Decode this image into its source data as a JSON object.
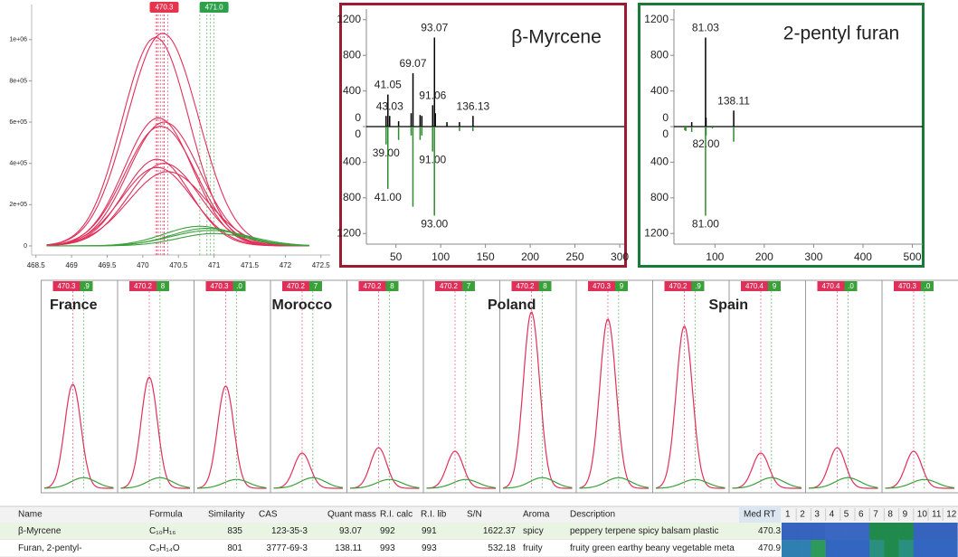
{
  "chart_data": [
    {
      "type": "peaks",
      "xlim": [
        468.44,
        472.63
      ],
      "xticks": [
        468.5,
        469,
        469.5,
        470,
        470.5,
        471,
        471.5,
        472,
        472.5
      ],
      "ylim": [
        -44000,
        1170000
      ],
      "yticks": [
        {
          "value": 0,
          "label": "0"
        },
        {
          "value": 200000,
          "label": "2e+05"
        },
        {
          "value": 400000,
          "label": "4e+05"
        },
        {
          "value": 600000,
          "label": "6e+05"
        },
        {
          "value": 800000,
          "label": "8e+05"
        },
        {
          "value": 1000000,
          "label": "1e+06"
        }
      ],
      "annotations": [
        {
          "text": "470.3",
          "x": 470.3,
          "color": "#e8334f"
        },
        {
          "text": "471.0",
          "x": 471.0,
          "color": "#2ea04a"
        }
      ],
      "series": [
        {
          "color": "#e0305a",
          "apex_x": 470.18,
          "apex_y": 1010000,
          "sigma": 0.47
        },
        {
          "color": "#e0305a",
          "apex_x": 470.28,
          "apex_y": 1030000,
          "sigma": 0.5
        },
        {
          "color": "#e0305a",
          "apex_x": 470.22,
          "apex_y": 620000,
          "sigma": 0.48
        },
        {
          "color": "#e0305a",
          "apex_x": 470.3,
          "apex_y": 600000,
          "sigma": 0.5
        },
        {
          "color": "#e0305a",
          "apex_x": 470.25,
          "apex_y": 580000,
          "sigma": 0.5
        },
        {
          "color": "#e0305a",
          "apex_x": 470.2,
          "apex_y": 420000,
          "sigma": 0.47
        },
        {
          "color": "#e0305a",
          "apex_x": 470.3,
          "apex_y": 400000,
          "sigma": 0.5
        },
        {
          "color": "#e0305a",
          "apex_x": 470.2,
          "apex_y": 380000,
          "sigma": 0.5
        },
        {
          "color": "#e0305a",
          "apex_x": 470.35,
          "apex_y": 360000,
          "sigma": 0.55
        },
        {
          "color": "#3aa03a",
          "apex_x": 470.8,
          "apex_y": 95000,
          "sigma": 0.5
        },
        {
          "color": "#3aa03a",
          "apex_x": 470.9,
          "apex_y": 85000,
          "sigma": 0.5
        },
        {
          "color": "#3aa03a",
          "apex_x": 470.95,
          "apex_y": 75000,
          "sigma": 0.55
        },
        {
          "color": "#3aa03a",
          "apex_x": 471.0,
          "apex_y": 60000,
          "sigma": 0.5
        }
      ]
    },
    {
      "type": "mirror-stem",
      "title": "β-Myrcene",
      "border_color": "#9b1b30",
      "xlim": [
        17,
        305
      ],
      "xticks": [
        50,
        100,
        150,
        200,
        250,
        300
      ],
      "ylim": [
        0,
        1320
      ],
      "yticks": [
        0,
        400,
        800,
        1200
      ],
      "series": [
        {
          "color": "#000000",
          "x": [
            41.05,
            43.03,
            69.07,
            91.06,
            93.07,
            136.13
          ],
          "labels": [
            "41.05",
            "43.03",
            "69.07",
            "91.06",
            "93.07",
            "136.13"
          ],
          "values": [
            360,
            120,
            600,
            240,
            1000,
            120
          ]
        },
        {
          "color": "#000000",
          "x": [
            39,
            53,
            67,
            77,
            79,
            94,
            107,
            121
          ],
          "values": [
            120,
            60,
            150,
            130,
            120,
            150,
            50,
            50
          ]
        },
        {
          "color": "#2e8b2e",
          "mirror": true,
          "x": [
            39,
            41,
            91,
            93
          ],
          "labels": [
            "39.00",
            "41.00",
            "91.00",
            "93.00"
          ],
          "values": [
            200,
            700,
            280,
            1000
          ]
        },
        {
          "color": "#2e8b2e",
          "mirror": true,
          "x": [
            53,
            67,
            69,
            77,
            79,
            121,
            136
          ],
          "values": [
            150,
            100,
            900,
            150,
            100,
            50,
            50
          ]
        }
      ]
    },
    {
      "type": "mirror-stem",
      "title": "2-pentyl furan",
      "border_color": "#1a7a3a",
      "xlim": [
        17,
        521
      ],
      "xticks": [
        100,
        200,
        300,
        400,
        500
      ],
      "ylim": [
        0,
        1320
      ],
      "yticks": [
        0,
        400,
        800,
        1200
      ],
      "series": [
        {
          "color": "#000000",
          "x": [
            81.03,
            138.11
          ],
          "labels": [
            "81.03",
            "138.11"
          ],
          "values": [
            1000,
            180
          ]
        },
        {
          "color": "#000000",
          "x": [
            53,
            82
          ],
          "values": [
            50,
            100
          ]
        },
        {
          "color": "#2e8b2e",
          "mirror": true,
          "x": [
            82,
            81
          ],
          "labels": [
            "82.00",
            "81.00"
          ],
          "values": [
            100,
            1000
          ]
        },
        {
          "color": "#2e8b2e",
          "mirror": true,
          "x": [
            39,
            41,
            53,
            95,
            138
          ],
          "values": [
            40,
            50,
            60,
            20,
            170
          ]
        }
      ]
    },
    {
      "type": "peak-grid",
      "categories": [
        "France",
        null,
        null,
        "Morocco",
        null,
        null,
        "Poland",
        null,
        null,
        "Spain",
        null,
        null
      ],
      "series": [
        {
          "color": "#e0305a",
          "labels": [
            "470.3",
            "470.2",
            "470.3",
            "470.2",
            "470.2",
            "470.2",
            "470.2",
            "470.3",
            "470.2",
            "470.4",
            "470.4",
            "470.3"
          ],
          "values": [
            0.59,
            0.63,
            0.58,
            0.2,
            0.23,
            0.21,
            1.0,
            0.96,
            0.92,
            0.2,
            0.23,
            0.21
          ]
        },
        {
          "color": "#3aa03a",
          "labels": [
            ".9",
            "8",
            ".0",
            "7",
            "8",
            "7",
            "8",
            "9",
            ".9",
            "9",
            ".0",
            ".0"
          ],
          "values": [
            0.06,
            0.06,
            0.05,
            0.06,
            0.05,
            0.05,
            0.06,
            0.06,
            0.05,
            0.06,
            0.06,
            0.05
          ]
        }
      ]
    }
  ],
  "table": {
    "columns": [
      "Name",
      "Formula",
      "Similarity",
      "CAS",
      "Quant mass",
      "R.I. calc",
      "R.I. lib",
      "S/N",
      "Aroma",
      "Description",
      "Med RT"
    ],
    "rows": [
      [
        "β-Myrcene",
        "C₁₀H₁₆",
        835,
        "123-35-3",
        93.07,
        992,
        991,
        1622.37,
        "spicy",
        "peppery terpene spicy balsam plastic",
        470.3
      ],
      [
        "Furan, 2-pentyl-",
        "C₉H₁₄O",
        801,
        "3777-69-3",
        138.11,
        993,
        993,
        532.18,
        "fruity",
        "fruity green earthy beany vegetable meta",
        470.9
      ]
    ],
    "heatmap": {
      "columns": [
        "1",
        "2",
        "3",
        "4",
        "5",
        "6",
        "7",
        "8",
        "9",
        "10",
        "11",
        "12"
      ],
      "colors": [
        [
          "#3563bd",
          "#3563bd",
          "#3563bd",
          "#3a67c2",
          "#3a67c2",
          "#3a67c2",
          "#1f8a4c",
          "#1f8a4c",
          "#1f8a4c",
          "#3563bd",
          "#3563bd",
          "#3563bd"
        ],
        [
          "#2f7fb0",
          "#2f7fb0",
          "#2e9a5a",
          "#3366c0",
          "#3366c0",
          "#3366c0",
          "#2b8f80",
          "#1f8a4c",
          "#2b8f80",
          "#3366c0",
          "#3366c0",
          "#3366c0"
        ]
      ]
    }
  }
}
